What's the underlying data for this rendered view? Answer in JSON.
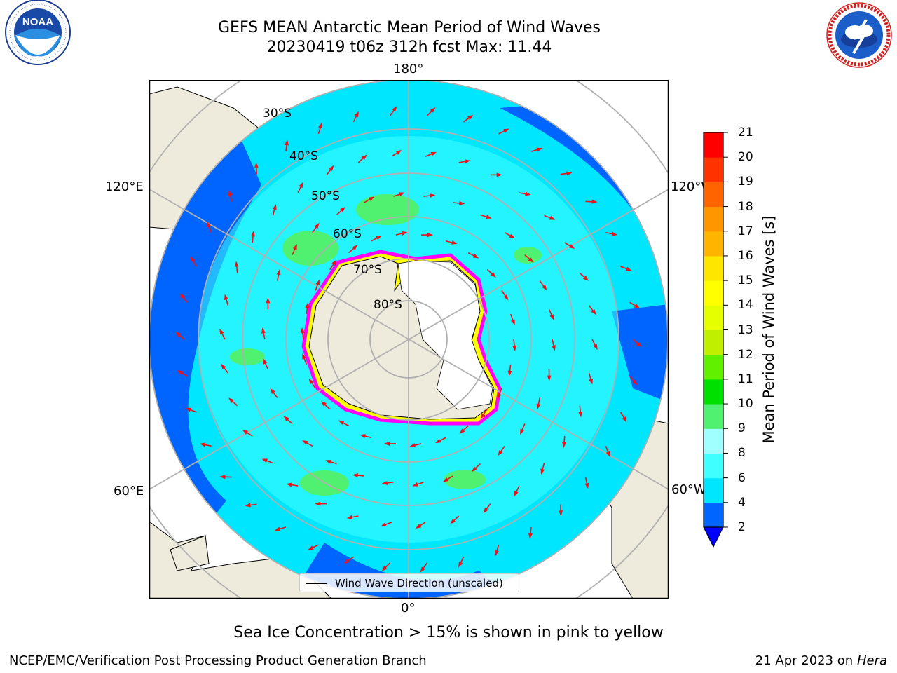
{
  "header": {
    "title_line1": "GEFS MEAN Antarctic Mean Period of Wind Waves",
    "title_line2": "20230419 t06z 312h fcst   Max: 11.44"
  },
  "logos": {
    "noaa_text": "NOAA",
    "noaa_ring_text": "NATIONAL OCEANIC AND ATMOSPHERIC ADMINISTRATION · U.S. DEPARTMENT OF COMMERCE",
    "nws_ring_text": "NATIONAL WEATHER SERVICE"
  },
  "map": {
    "projection": "south-polar-stereographic",
    "longitude_labels": {
      "top": "180°",
      "upper_right": "120°W",
      "lower_right": "60°W",
      "bottom": "0°",
      "lower_left": "60°E",
      "upper_left": "120°E"
    },
    "latitude_labels": [
      "30°S",
      "40°S",
      "50°S",
      "60°S",
      "70°S",
      "80°S"
    ],
    "legend_label": "Wind Wave Direction (unscaled)",
    "arrow_color": "#e8141a",
    "ice_colors": [
      "#ff00ff",
      "#ffff00"
    ]
  },
  "colorbar": {
    "label": "Mean Period of Wind Waves [s]",
    "ticks": [
      "2",
      "4",
      "6",
      "8",
      "9",
      "10",
      "11",
      "12",
      "13",
      "14",
      "15",
      "16",
      "17",
      "18",
      "19",
      "20",
      "21"
    ],
    "colors": [
      "#0064ff",
      "#00e6ff",
      "#40ffff",
      "#a0ffff",
      "#50f070",
      "#00e000",
      "#60f000",
      "#c0f000",
      "#e6ff00",
      "#ffff00",
      "#ffe600",
      "#ffb400",
      "#ff9600",
      "#ff6400",
      "#ff3200",
      "#ff0000"
    ],
    "under_color": "#0000ff"
  },
  "caption": "Sea Ice Concentration > 15% is shown in pink to yellow",
  "footer": {
    "left": "NCEP/EMC/Verification Post Processing Product Generation Branch",
    "right_date": "21 Apr 2023 on ",
    "right_host": "Hera"
  }
}
